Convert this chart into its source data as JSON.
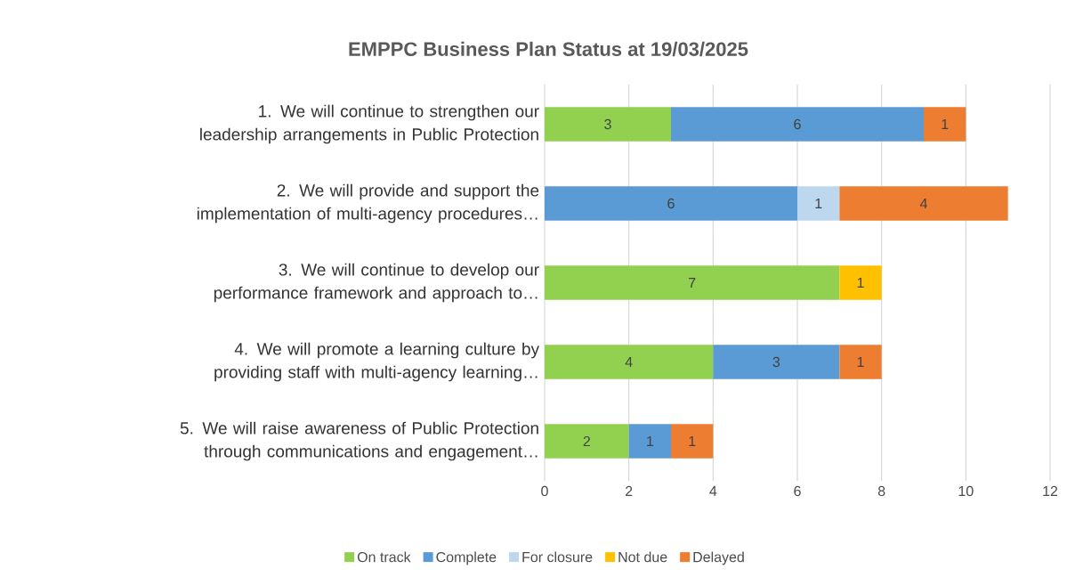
{
  "chart_data": {
    "type": "bar",
    "orientation": "horizontal",
    "stacked": true,
    "title": "EMPPC Business Plan Status at 19/03/2025",
    "categories": [
      "1. We will continue to strengthen our leadership arrangements in Public Protection",
      "2. We will provide and support the implementation of multi-agency procedures…",
      "3. We will continue to develop our performance framework and approach to…",
      "4. We will promote a learning culture by providing staff with multi-agency learning…",
      "5. We will raise awareness of Public Protection through communications and engagement…"
    ],
    "series": [
      {
        "name": "On track",
        "color": "#92d050",
        "values": [
          3,
          null,
          7,
          4,
          2
        ]
      },
      {
        "name": "Complete",
        "color": "#5b9bd5",
        "values": [
          6,
          6,
          null,
          3,
          1
        ]
      },
      {
        "name": "For closure",
        "color": "#bdd7ee",
        "values": [
          null,
          1,
          null,
          null,
          null
        ]
      },
      {
        "name": "Not due",
        "color": "#ffc000",
        "values": [
          null,
          null,
          1,
          null,
          null
        ]
      },
      {
        "name": "Delayed",
        "color": "#ed7d31",
        "values": [
          1,
          4,
          null,
          1,
          1
        ]
      }
    ],
    "xlim": [
      0,
      12
    ],
    "xticks": [
      0,
      2,
      4,
      6,
      8,
      10,
      12
    ],
    "grid": "x",
    "legend": "bottom",
    "data_labels": true
  }
}
